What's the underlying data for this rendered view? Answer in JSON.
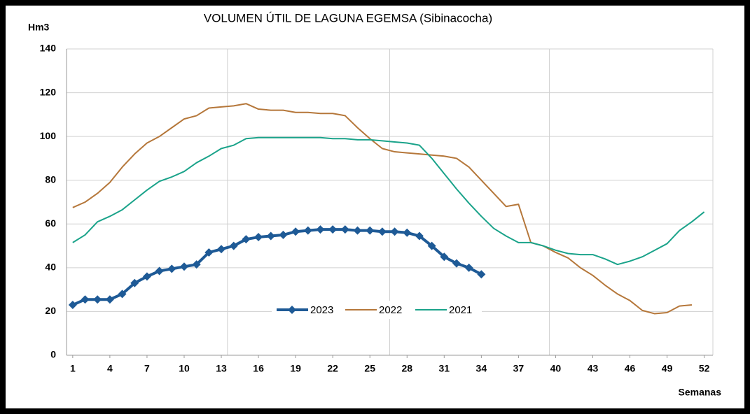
{
  "chart_data": {
    "type": "line",
    "title": "VOLUMEN ÚTIL DE LAGUNA EGEMSA (Sibinacocha)",
    "y_label": "Hm3",
    "x_label": "Semanas",
    "x": [
      1,
      2,
      3,
      4,
      5,
      6,
      7,
      8,
      9,
      10,
      11,
      12,
      13,
      14,
      15,
      16,
      17,
      18,
      19,
      20,
      21,
      22,
      23,
      24,
      25,
      26,
      27,
      28,
      29,
      30,
      31,
      32,
      33,
      34,
      35,
      36,
      37,
      38,
      39,
      40,
      41,
      42,
      43,
      44,
      45,
      46,
      47,
      48,
      49,
      50,
      51,
      52
    ],
    "series": [
      {
        "name": "2023",
        "color": "#1e5a96",
        "markers": true,
        "values": [
          23,
          25.5,
          25.5,
          25.5,
          28,
          33,
          36,
          38.5,
          39.5,
          40.5,
          41.5,
          47,
          48.5,
          50,
          53,
          54,
          54.5,
          55,
          56.5,
          57,
          57.5,
          57.5,
          57.5,
          57,
          57,
          56.5,
          56.5,
          56,
          54.5,
          50,
          45,
          42,
          40,
          37,
          null,
          null,
          null,
          null,
          null,
          null,
          null,
          null,
          null,
          null,
          null,
          null,
          null,
          null,
          null,
          null,
          null,
          null
        ]
      },
      {
        "name": "2022",
        "color": "#b5773a",
        "values": [
          67.5,
          70,
          74,
          79,
          86,
          92,
          97,
          100,
          104,
          108,
          109.5,
          113,
          113.5,
          114,
          115,
          112.5,
          112,
          112,
          111,
          111,
          110.5,
          110.5,
          109.5,
          104,
          99,
          94.5,
          93,
          92.5,
          92,
          91.5,
          91,
          90,
          86,
          80,
          74,
          68,
          69,
          51.5,
          50,
          47,
          44.5,
          40,
          36.5,
          32,
          28,
          25,
          20.5,
          19,
          19.5,
          22.5,
          23,
          null
        ]
      },
      {
        "name": "2021",
        "color": "#1aa38a",
        "values": [
          51.5,
          55,
          61,
          63.5,
          66.5,
          71,
          75.5,
          79.5,
          81.5,
          84,
          88,
          91,
          94.5,
          96,
          99,
          99.5,
          99.5,
          99.5,
          99.5,
          99.5,
          99.5,
          99,
          99,
          98.5,
          98.5,
          98,
          97.5,
          97,
          96,
          90,
          83,
          76,
          69.5,
          63.5,
          58,
          54.5,
          51.5,
          51.5,
          50,
          48,
          46.5,
          46,
          46,
          44,
          41.5,
          43,
          45,
          48,
          51,
          57,
          61,
          65.5
        ]
      }
    ],
    "xlim": [
      0.5,
      52.7
    ],
    "xticks": [
      1,
      4,
      7,
      10,
      13,
      16,
      19,
      22,
      25,
      28,
      31,
      34,
      37,
      40,
      43,
      46,
      49,
      52
    ],
    "xgrid": [
      13.5,
      26.6,
      39.5,
      52.7
    ],
    "ylim": [
      0,
      140
    ],
    "yticks": [
      0,
      20,
      40,
      60,
      80,
      100,
      120,
      140
    ],
    "grid": true
  }
}
